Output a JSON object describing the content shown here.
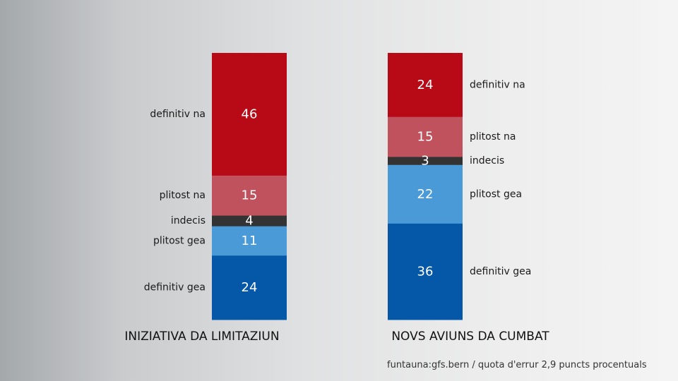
{
  "chart_data": [
    {
      "type": "bar",
      "title": "INIZIATIVA DA LIMITAZIUN",
      "stacked": true,
      "label_side": "left",
      "segments": [
        {
          "label": "definitiv na",
          "value": 46,
          "color": "#b80a16"
        },
        {
          "label": "plitost na",
          "value": 15,
          "color": "#c0525d"
        },
        {
          "label": "indecis",
          "value": 4,
          "color": "#333333"
        },
        {
          "label": "plitost gea",
          "value": 11,
          "color": "#4a9ad8"
        },
        {
          "label": "definitiv gea",
          "value": 24,
          "color": "#0558a8"
        }
      ]
    },
    {
      "type": "bar",
      "title": "NOVS AVIUNS DA CUMBAT",
      "stacked": true,
      "label_side": "right",
      "segments": [
        {
          "label": "definitiv na",
          "value": 24,
          "color": "#b80a16"
        },
        {
          "label": "plitost na",
          "value": 15,
          "color": "#c0525d"
        },
        {
          "label": "indecis",
          "value": 3,
          "color": "#333333"
        },
        {
          "label": "plitost gea",
          "value": 22,
          "color": "#4a9ad8"
        },
        {
          "label": "definitiv gea",
          "value": 36,
          "color": "#0558a8"
        }
      ]
    }
  ],
  "footer": {
    "source": "funtauna:gfs.bern / quota d'errur 2,9 puncts procentuals"
  }
}
